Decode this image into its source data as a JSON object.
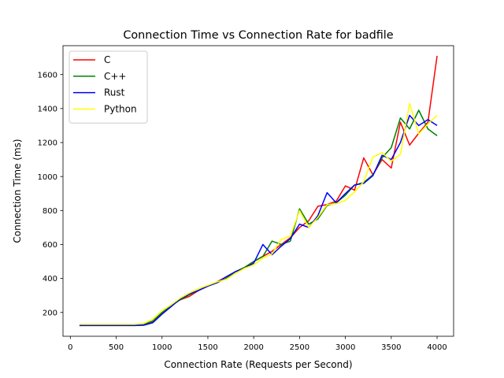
{
  "chart_data": {
    "type": "line",
    "title": "Connection Time vs Connection Rate for badfile",
    "xlabel": "Connection Rate (Requests per Second)",
    "ylabel": "Connection Time (ms)",
    "xlim": [
      -80,
      4180
    ],
    "ylim": [
      60,
      1770
    ],
    "xticks": [
      0,
      500,
      1000,
      1500,
      2000,
      2500,
      3000,
      3500,
      4000
    ],
    "yticks": [
      200,
      400,
      600,
      800,
      1000,
      1200,
      1400,
      1600
    ],
    "grid": false,
    "legend_position": "top-left",
    "x": [
      100,
      200,
      300,
      400,
      500,
      600,
      700,
      800,
      900,
      1000,
      1100,
      1200,
      1300,
      1400,
      1500,
      1600,
      1700,
      1800,
      1900,
      2000,
      2100,
      2200,
      2300,
      2400,
      2500,
      2600,
      2700,
      2800,
      2900,
      3000,
      3100,
      3200,
      3300,
      3400,
      3500,
      3600,
      3700,
      3800,
      3900,
      4000
    ],
    "series": [
      {
        "name": "C",
        "color": "#ff0000",
        "values": [
          128,
          128,
          128,
          128,
          128,
          128,
          128,
          132,
          145,
          195,
          245,
          275,
          295,
          330,
          355,
          380,
          410,
          440,
          465,
          500,
          530,
          560,
          600,
          640,
          700,
          740,
          825,
          835,
          855,
          945,
          920,
          1110,
          1010,
          1100,
          1050,
          1320,
          1185,
          1255,
          1320,
          1710
        ]
      },
      {
        "name": "C++",
        "color": "#008000",
        "values": [
          125,
          125,
          125,
          125,
          125,
          125,
          125,
          130,
          150,
          200,
          240,
          275,
          305,
          330,
          355,
          375,
          400,
          440,
          465,
          500,
          530,
          620,
          600,
          620,
          810,
          720,
          750,
          830,
          845,
          890,
          950,
          965,
          1010,
          1110,
          1170,
          1345,
          1280,
          1390,
          1280,
          1240
        ]
      },
      {
        "name": "Rust",
        "color": "#0000ff",
        "values": [
          123,
          123,
          123,
          123,
          123,
          123,
          123,
          125,
          140,
          190,
          235,
          280,
          310,
          330,
          355,
          375,
          410,
          440,
          460,
          490,
          600,
          540,
          590,
          635,
          720,
          700,
          770,
          905,
          845,
          900,
          950,
          960,
          1005,
          1125,
          1100,
          1200,
          1360,
          1300,
          1335,
          1300
        ]
      },
      {
        "name": "Python",
        "color": "#ffff00",
        "values": [
          130,
          130,
          130,
          130,
          130,
          130,
          130,
          135,
          160,
          210,
          245,
          285,
          315,
          340,
          360,
          380,
          395,
          430,
          460,
          480,
          520,
          545,
          630,
          650,
          800,
          700,
          760,
          835,
          840,
          860,
          910,
          970,
          1115,
          1140,
          1090,
          1130,
          1430,
          1250,
          1310,
          1360
        ]
      }
    ]
  }
}
